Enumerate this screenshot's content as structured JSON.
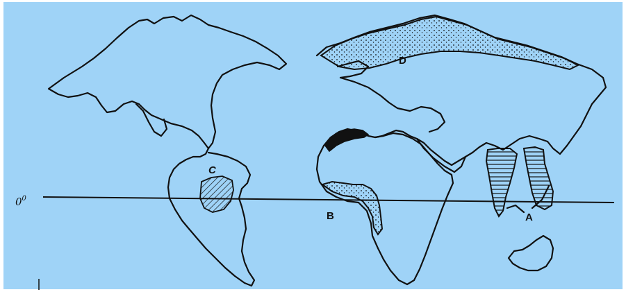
{
  "map": {
    "background_color": "#9fd3f7",
    "land_outline_color": "#111111",
    "equator_label": "0",
    "equator_label_sup": "0",
    "region_labels": {
      "a": "A",
      "b": "B",
      "c": "C",
      "d": "D"
    },
    "region_patterns": {
      "a": "horizontal-hatch",
      "b": "dotted",
      "c": "diagonal-hatch",
      "d": "dotted",
      "north_africa": "solid-black"
    }
  }
}
